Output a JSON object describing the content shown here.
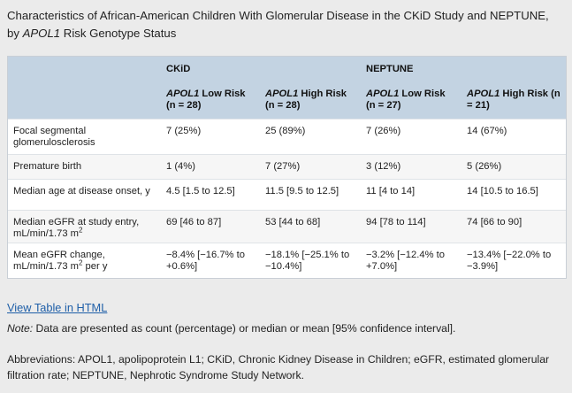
{
  "title": {
    "line1": "Characteristics of African-American Children With Glomerular Disease in the CKiD Study and NEPTUNE,",
    "line2_pre": "by ",
    "line2_em": "APOL1",
    "line2_post": " Risk Genotype Status"
  },
  "table": {
    "groups": [
      "CKiD",
      "NEPTUNE"
    ],
    "columns": [
      {
        "em": "APOL1",
        "rest": " Low Risk (n = 28)"
      },
      {
        "em": "APOL1",
        "rest": " High Risk (n = 28)"
      },
      {
        "em": "APOL1",
        "rest": " Low Risk (n = 27)"
      },
      {
        "em": "APOL1",
        "rest": " High Risk (n = 21)"
      }
    ],
    "rows": [
      {
        "label": "Focal segmental glomerulosclerosis",
        "cells": [
          "7 (25%)",
          "25 (89%)",
          "7 (26%)",
          "14 (67%)"
        ]
      },
      {
        "label": "Premature birth",
        "cells": [
          "1 (4%)",
          "7 (27%)",
          "3 (12%)",
          "5 (26%)"
        ]
      },
      {
        "label": "Median age at disease onset, y",
        "cells": [
          "4.5 [1.5 to 12.5]",
          "11.5 [9.5 to 12.5]",
          "11 [4 to 14]",
          "14 [10.5 to 16.5]"
        ]
      },
      {
        "label_pre": "Median eGFR at study entry, mL/min/1.73 m",
        "label_sup": "2",
        "label_post": "",
        "cells": [
          "69 [46 to 87]",
          "53 [44 to 68]",
          "94 [78 to 114]",
          "74 [66 to 90]"
        ]
      },
      {
        "label_pre": "Mean eGFR change, mL/min/1.73 m",
        "label_sup": "2",
        "label_post": " per y",
        "cells": [
          "−8.4% [−16.7% to +0.6%]",
          "−18.1% [−25.1% to −10.4%]",
          "−3.2% [−12.4% to +7.0%]",
          "−13.4% [−22.0% to −3.9%]"
        ]
      }
    ]
  },
  "link": "View Table in HTML",
  "note": {
    "label": "Note:",
    "text": " Data are presented as count (percentage) or median or mean [95% confidence interval]."
  },
  "abbreviations": "Abbreviations: APOL1, apolipoprotein L1; CKiD, Chronic Kidney Disease in Children; eGFR, estimated glomerular filtration rate; NEPTUNE, Nephrotic Syndrome Study Network."
}
